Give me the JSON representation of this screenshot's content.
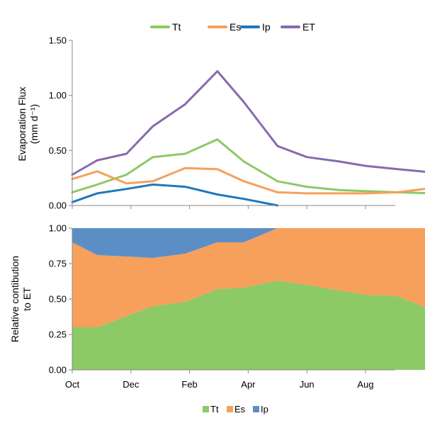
{
  "chart_data": [
    {
      "type": "line",
      "ylabel": [
        "Evaporation Flux",
        "(mm d⁻¹)"
      ],
      "ylim": [
        0,
        1.5
      ],
      "yticks": [
        "0.00",
        "0.50",
        "1.00",
        "1.50"
      ],
      "x": [
        0,
        0.85,
        1.85,
        2.75,
        3.85,
        4.95,
        5.85,
        7.0,
        8.0,
        9.1,
        10.0,
        11.1,
        12.3
      ],
      "legend_position": "top",
      "grid": false,
      "series": [
        {
          "name": "Tt",
          "color": "#8dc965",
          "values": [
            0.12,
            0.19,
            0.28,
            0.44,
            0.47,
            0.6,
            0.4,
            0.22,
            0.17,
            0.14,
            0.13,
            0.12,
            0.11
          ]
        },
        {
          "name": "Es",
          "color": "#f6a05b",
          "values": [
            0.24,
            0.31,
            0.2,
            0.22,
            0.34,
            0.33,
            0.22,
            0.12,
            0.11,
            0.11,
            0.11,
            0.12,
            0.16
          ]
        },
        {
          "name": "Ip",
          "color": "#1d78bf",
          "values": [
            0.03,
            0.11,
            0.15,
            0.19,
            0.17,
            0.1,
            0.06,
            0.0,
            null,
            null,
            null,
            null,
            null
          ]
        },
        {
          "name": "ET",
          "color": "#8869af",
          "values": [
            0.28,
            0.41,
            0.47,
            0.72,
            0.92,
            1.22,
            0.94,
            0.54,
            0.44,
            0.4,
            0.36,
            0.33,
            0.3
          ]
        }
      ]
    },
    {
      "type": "area",
      "stacked": true,
      "ylabel": [
        "Relative contibution",
        "to ET"
      ],
      "ylim": [
        0,
        1
      ],
      "yticks": [
        "0.00",
        "0.25",
        "0.50",
        "0.75",
        "1.00"
      ],
      "xticks": [
        {
          "pos": 0,
          "label": "Oct"
        },
        {
          "pos": 2,
          "label": "Dec"
        },
        {
          "pos": 4,
          "label": "Feb"
        },
        {
          "pos": 6,
          "label": "Apr"
        },
        {
          "pos": 8,
          "label": "Jun"
        },
        {
          "pos": 10,
          "label": "Aug"
        }
      ],
      "x": [
        0,
        0.85,
        1.85,
        2.75,
        3.85,
        4.95,
        5.85,
        7.0,
        8.0,
        9.1,
        10.0,
        11.1,
        12.3
      ],
      "legend_position": "bottom",
      "grid": false,
      "series": [
        {
          "name": "Tt",
          "color": "#8dc965",
          "values": [
            0.3,
            0.3,
            0.38,
            0.45,
            0.48,
            0.57,
            0.58,
            0.63,
            0.6,
            0.56,
            0.53,
            0.52,
            0.42
          ]
        },
        {
          "name": "Es",
          "color": "#f6a05b",
          "values": [
            0.6,
            0.51,
            0.42,
            0.34,
            0.34,
            0.33,
            0.32,
            0.37,
            0.4,
            0.44,
            0.47,
            0.48,
            0.58
          ]
        },
        {
          "name": "Ip",
          "color": "#5c8ec6",
          "values": [
            0.1,
            0.19,
            0.2,
            0.21,
            0.18,
            0.1,
            0.1,
            0.0,
            0.0,
            0.0,
            0.0,
            0.0,
            0.0
          ]
        }
      ]
    }
  ]
}
